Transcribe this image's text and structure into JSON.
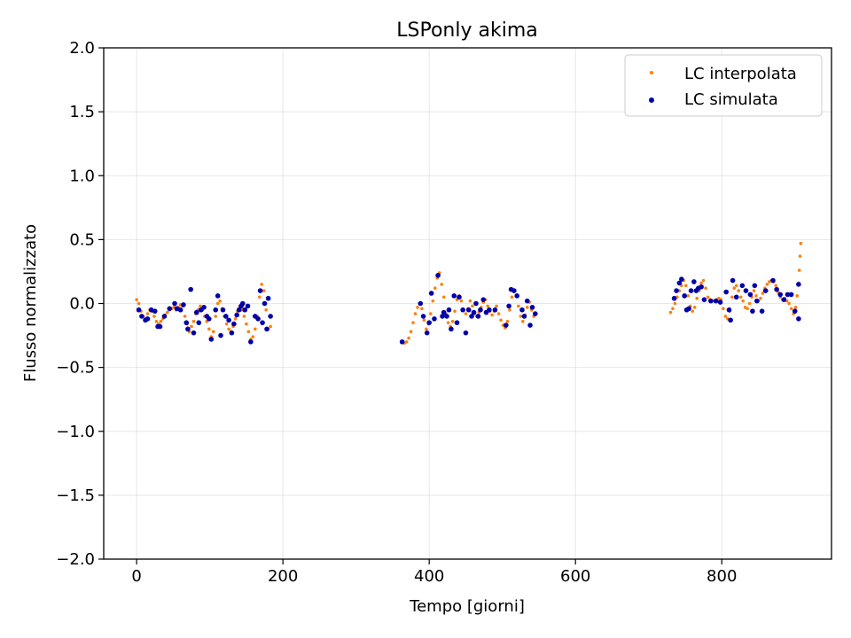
{
  "chart_data": {
    "type": "scatter",
    "title": "LSPonly akima",
    "xlabel": "Tempo [giorni]",
    "ylabel": "Flusso normalizzato",
    "xlim": [
      -45,
      950
    ],
    "ylim": [
      -2.0,
      2.0
    ],
    "x_ticks": [
      0,
      200,
      400,
      600,
      800
    ],
    "y_ticks": [
      -2.0,
      -1.5,
      -1.0,
      -0.5,
      0.0,
      0.5,
      1.0,
      1.5,
      2.0
    ],
    "x_tick_labels": [
      "0",
      "200",
      "400",
      "600",
      "800"
    ],
    "y_tick_labels": [
      "−2.0",
      "−1.5",
      "−1.0",
      "−0.5",
      "0.0",
      "0.5",
      "1.0",
      "1.5",
      "2.0"
    ],
    "grid": true,
    "legend_position": "top-right",
    "colors": {
      "interpolata": "#ff7f0e",
      "simulata": "#0000aa"
    },
    "series": [
      {
        "name": "LC interpolata",
        "points": [
          [
            0,
            0.03
          ],
          [
            3,
            0.0
          ],
          [
            6,
            -0.06
          ],
          [
            9,
            -0.1
          ],
          [
            12,
            -0.12
          ],
          [
            15,
            -0.08
          ],
          [
            18,
            -0.05
          ],
          [
            21,
            -0.06
          ],
          [
            24,
            -0.1
          ],
          [
            27,
            -0.14
          ],
          [
            30,
            -0.16
          ],
          [
            33,
            -0.14
          ],
          [
            36,
            -0.12
          ],
          [
            39,
            -0.09
          ],
          [
            42,
            -0.07
          ],
          [
            45,
            -0.05
          ],
          [
            48,
            -0.04
          ],
          [
            51,
            -0.03
          ],
          [
            54,
            -0.05
          ],
          [
            57,
            -0.03
          ],
          [
            60,
            -0.01
          ],
          [
            63,
            -0.02
          ],
          [
            66,
            -0.1
          ],
          [
            69,
            -0.16
          ],
          [
            72,
            -0.22
          ],
          [
            75,
            -0.18
          ],
          [
            78,
            -0.14
          ],
          [
            81,
            -0.08
          ],
          [
            84,
            -0.05
          ],
          [
            87,
            -0.02
          ],
          [
            90,
            -0.05
          ],
          [
            93,
            -0.1
          ],
          [
            96,
            -0.14
          ],
          [
            99,
            -0.2
          ],
          [
            102,
            -0.26
          ],
          [
            105,
            -0.22
          ],
          [
            108,
            -0.1
          ],
          [
            111,
            0.0
          ],
          [
            114,
            0.02
          ],
          [
            117,
            -0.04
          ],
          [
            120,
            -0.1
          ],
          [
            123,
            -0.16
          ],
          [
            126,
            -0.2
          ],
          [
            129,
            -0.22
          ],
          [
            132,
            -0.18
          ],
          [
            135,
            -0.12
          ],
          [
            138,
            -0.06
          ],
          [
            141,
            -0.02
          ],
          [
            144,
            -0.05
          ],
          [
            147,
            -0.1
          ],
          [
            150,
            -0.16
          ],
          [
            153,
            -0.22
          ],
          [
            156,
            -0.28
          ],
          [
            159,
            -0.26
          ],
          [
            162,
            -0.2
          ],
          [
            165,
            -0.1
          ],
          [
            168,
            0.05
          ],
          [
            171,
            0.15
          ],
          [
            174,
            0.1
          ],
          [
            177,
            -0.05
          ],
          [
            180,
            -0.2
          ],
          [
            183,
            -0.18
          ],
          [
            363,
            -0.3
          ],
          [
            366,
            -0.31
          ],
          [
            369,
            -0.3
          ],
          [
            372,
            -0.27
          ],
          [
            375,
            -0.22
          ],
          [
            378,
            -0.15
          ],
          [
            381,
            -0.08
          ],
          [
            384,
            -0.03
          ],
          [
            387,
            0.0
          ],
          [
            390,
            -0.04
          ],
          [
            393,
            -0.13
          ],
          [
            396,
            -0.2
          ],
          [
            399,
            -0.16
          ],
          [
            402,
            -0.08
          ],
          [
            405,
            0.02
          ],
          [
            408,
            0.12
          ],
          [
            411,
            0.2
          ],
          [
            414,
            0.24
          ],
          [
            417,
            0.15
          ],
          [
            420,
            0.05
          ],
          [
            423,
            -0.08
          ],
          [
            426,
            -0.15
          ],
          [
            429,
            -0.18
          ],
          [
            432,
            -0.14
          ],
          [
            435,
            -0.06
          ],
          [
            438,
            0.03
          ],
          [
            441,
            0.06
          ],
          [
            444,
            0.02
          ],
          [
            447,
            -0.05
          ],
          [
            450,
            -0.08
          ],
          [
            453,
            -0.04
          ],
          [
            456,
            0.02
          ],
          [
            459,
            -0.02
          ],
          [
            462,
            -0.08
          ],
          [
            465,
            -0.1
          ],
          [
            468,
            -0.07
          ],
          [
            471,
            -0.03
          ],
          [
            474,
            0.01
          ],
          [
            477,
            0.03
          ],
          [
            480,
            -0.02
          ],
          [
            483,
            -0.06
          ],
          [
            486,
            -0.09
          ],
          [
            489,
            -0.06
          ],
          [
            492,
            -0.02
          ],
          [
            495,
            -0.08
          ],
          [
            498,
            -0.13
          ],
          [
            501,
            -0.17
          ],
          [
            504,
            -0.19
          ],
          [
            507,
            -0.14
          ],
          [
            510,
            -0.05
          ],
          [
            513,
            0.05
          ],
          [
            516,
            0.1
          ],
          [
            519,
            0.06
          ],
          [
            522,
            -0.02
          ],
          [
            525,
            -0.1
          ],
          [
            528,
            -0.14
          ],
          [
            531,
            -0.09
          ],
          [
            534,
            -0.03
          ],
          [
            537,
            0.01
          ],
          [
            540,
            -0.05
          ],
          [
            543,
            -0.1
          ],
          [
            546,
            -0.08
          ],
          [
            730,
            -0.07
          ],
          [
            733,
            -0.04
          ],
          [
            736,
            0.0
          ],
          [
            739,
            0.05
          ],
          [
            742,
            0.1
          ],
          [
            745,
            0.14
          ],
          [
            748,
            0.18
          ],
          [
            751,
            0.14
          ],
          [
            754,
            0.06
          ],
          [
            757,
            -0.02
          ],
          [
            760,
            -0.06
          ],
          [
            763,
            -0.03
          ],
          [
            766,
            0.04
          ],
          [
            769,
            0.1
          ],
          [
            772,
            0.16
          ],
          [
            775,
            0.18
          ],
          [
            778,
            0.12
          ],
          [
            781,
            0.05
          ],
          [
            784,
            0.03
          ],
          [
            787,
            0.02
          ],
          [
            790,
            0.02
          ],
          [
            793,
            0.03
          ],
          [
            796,
            0.04
          ],
          [
            799,
            0.03
          ],
          [
            802,
            -0.04
          ],
          [
            805,
            -0.1
          ],
          [
            808,
            -0.12
          ],
          [
            811,
            -0.06
          ],
          [
            814,
            0.05
          ],
          [
            817,
            0.12
          ],
          [
            820,
            0.14
          ],
          [
            823,
            0.1
          ],
          [
            826,
            0.05
          ],
          [
            829,
            0.02
          ],
          [
            832,
            -0.03
          ],
          [
            835,
            -0.04
          ],
          [
            838,
            0.0
          ],
          [
            841,
            0.05
          ],
          [
            844,
            0.1
          ],
          [
            847,
            0.06
          ],
          [
            850,
            0.02
          ],
          [
            853,
            0.04
          ],
          [
            856,
            0.08
          ],
          [
            859,
            0.12
          ],
          [
            862,
            0.15
          ],
          [
            865,
            0.17
          ],
          [
            868,
            0.18
          ],
          [
            871,
            0.17
          ],
          [
            874,
            0.14
          ],
          [
            877,
            0.09
          ],
          [
            880,
            0.05
          ],
          [
            883,
            0.03
          ],
          [
            886,
            0.04
          ],
          [
            889,
            0.02
          ],
          [
            892,
            0.0
          ],
          [
            895,
            -0.04
          ],
          [
            898,
            -0.08
          ],
          [
            901,
            -0.03
          ],
          [
            903,
            0.06
          ],
          [
            905,
            0.16
          ],
          [
            906,
            0.26
          ],
          [
            907,
            0.37
          ],
          [
            908,
            0.47
          ]
        ]
      },
      {
        "name": "LC simulata",
        "points": [
          [
            3,
            -0.05
          ],
          [
            7,
            -0.1
          ],
          [
            12,
            -0.13
          ],
          [
            15,
            -0.12
          ],
          [
            20,
            -0.05
          ],
          [
            25,
            -0.06
          ],
          [
            29,
            -0.18
          ],
          [
            32,
            -0.18
          ],
          [
            38,
            -0.1
          ],
          [
            45,
            -0.04
          ],
          [
            52,
            0.0
          ],
          [
            55,
            -0.04
          ],
          [
            60,
            -0.05
          ],
          [
            64,
            -0.01
          ],
          [
            68,
            -0.15
          ],
          [
            70,
            -0.2
          ],
          [
            74,
            0.11
          ],
          [
            78,
            -0.23
          ],
          [
            82,
            -0.07
          ],
          [
            85,
            -0.15
          ],
          [
            88,
            -0.05
          ],
          [
            92,
            -0.03
          ],
          [
            96,
            -0.1
          ],
          [
            99,
            -0.12
          ],
          [
            102,
            -0.28
          ],
          [
            108,
            -0.05
          ],
          [
            111,
            0.06
          ],
          [
            115,
            -0.25
          ],
          [
            118,
            -0.05
          ],
          [
            122,
            -0.1
          ],
          [
            126,
            -0.13
          ],
          [
            130,
            -0.23
          ],
          [
            133,
            -0.16
          ],
          [
            137,
            -0.09
          ],
          [
            140,
            -0.05
          ],
          [
            143,
            -0.02
          ],
          [
            145,
            0.0
          ],
          [
            148,
            -0.05
          ],
          [
            152,
            -0.02
          ],
          [
            156,
            -0.3
          ],
          [
            162,
            -0.1
          ],
          [
            166,
            -0.12
          ],
          [
            169,
            0.1
          ],
          [
            172,
            -0.15
          ],
          [
            175,
            0.0
          ],
          [
            178,
            -0.2
          ],
          [
            180,
            0.04
          ],
          [
            183,
            -0.1
          ],
          [
            363,
            -0.3
          ],
          [
            388,
            0.0
          ],
          [
            392,
            -0.1
          ],
          [
            397,
            -0.23
          ],
          [
            400,
            -0.15
          ],
          [
            403,
            0.08
          ],
          [
            407,
            -0.12
          ],
          [
            412,
            0.22
          ],
          [
            418,
            -0.1
          ],
          [
            420,
            -0.07
          ],
          [
            424,
            -0.1
          ],
          [
            427,
            -0.05
          ],
          [
            430,
            -0.2
          ],
          [
            434,
            0.06
          ],
          [
            438,
            -0.15
          ],
          [
            441,
            0.05
          ],
          [
            446,
            -0.05
          ],
          [
            450,
            -0.23
          ],
          [
            454,
            -0.05
          ],
          [
            458,
            -0.1
          ],
          [
            461,
            -0.07
          ],
          [
            464,
            0.0
          ],
          [
            467,
            -0.1
          ],
          [
            470,
            -0.05
          ],
          [
            474,
            0.03
          ],
          [
            478,
            -0.07
          ],
          [
            482,
            -0.05
          ],
          [
            490,
            -0.05
          ],
          [
            505,
            -0.17
          ],
          [
            509,
            -0.02
          ],
          [
            512,
            0.11
          ],
          [
            516,
            0.1
          ],
          [
            520,
            0.06
          ],
          [
            527,
            -0.05
          ],
          [
            530,
            -0.1
          ],
          [
            534,
            0.02
          ],
          [
            538,
            -0.17
          ],
          [
            541,
            -0.03
          ],
          [
            545,
            -0.08
          ],
          [
            735,
            0.04
          ],
          [
            738,
            0.1
          ],
          [
            742,
            0.16
          ],
          [
            745,
            0.19
          ],
          [
            749,
            0.06
          ],
          [
            752,
            -0.05
          ],
          [
            755,
            -0.04
          ],
          [
            758,
            0.1
          ],
          [
            762,
            0.17
          ],
          [
            765,
            0.1
          ],
          [
            768,
            0.12
          ],
          [
            772,
            0.13
          ],
          [
            776,
            0.03
          ],
          [
            785,
            0.02
          ],
          [
            792,
            0.02
          ],
          [
            798,
            0.01
          ],
          [
            806,
            0.09
          ],
          [
            810,
            -0.05
          ],
          [
            812,
            -0.13
          ],
          [
            815,
            0.18
          ],
          [
            820,
            0.05
          ],
          [
            828,
            0.14
          ],
          [
            833,
            0.1
          ],
          [
            839,
            0.07
          ],
          [
            842,
            -0.06
          ],
          [
            845,
            0.14
          ],
          [
            848,
            0.02
          ],
          [
            855,
            -0.06
          ],
          [
            860,
            0.1
          ],
          [
            870,
            0.18
          ],
          [
            875,
            0.11
          ],
          [
            880,
            0.07
          ],
          [
            885,
            0.03
          ],
          [
            890,
            0.07
          ],
          [
            895,
            0.07
          ],
          [
            900,
            -0.06
          ],
          [
            905,
            0.15
          ],
          [
            905,
            -0.12
          ]
        ]
      }
    ]
  }
}
